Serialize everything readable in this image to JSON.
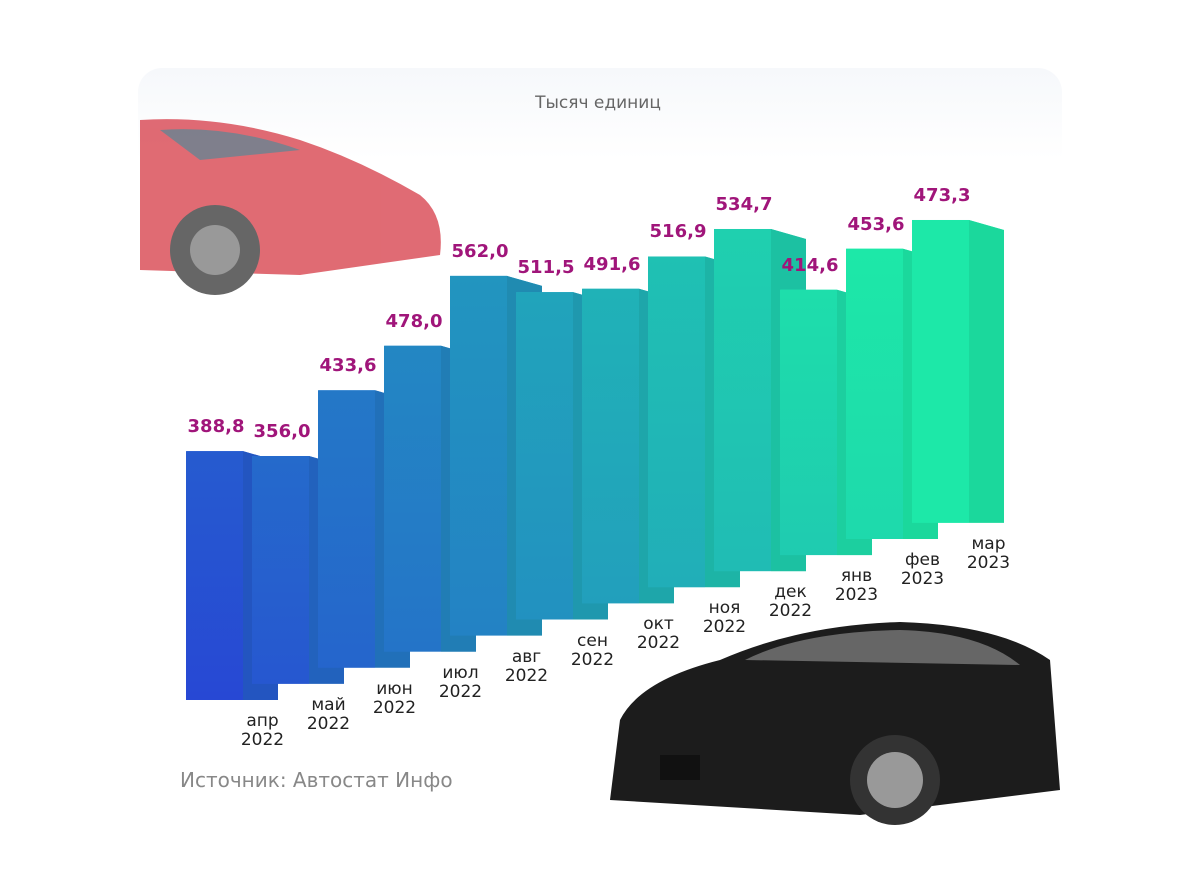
{
  "chart_data": {
    "type": "bar",
    "subtitle": "Тысяч единиц",
    "source": "Источник: Автостат Инфо",
    "categories": [
      "апр 2022",
      "май 2022",
      "июн 2022",
      "июл 2022",
      "авг 2022",
      "сен 2022",
      "окт 2022",
      "ноя 2022",
      "дек 2022",
      "янв 2023",
      "фев 2023",
      "мар 2023"
    ],
    "values": [
      388.8,
      356.0,
      433.6,
      478.0,
      562.0,
      511.5,
      491.6,
      516.9,
      534.7,
      414.6,
      453.6,
      473.3
    ],
    "value_labels": [
      "388,8",
      "356,0",
      "433,6",
      "478,0",
      "562,0",
      "511,5",
      "491,6",
      "516,9",
      "534,7",
      "414,6",
      "453,6",
      "473,3"
    ],
    "color_start": "#2748d4",
    "color_end": "#1de8a8",
    "label_color": "#a0157a"
  }
}
